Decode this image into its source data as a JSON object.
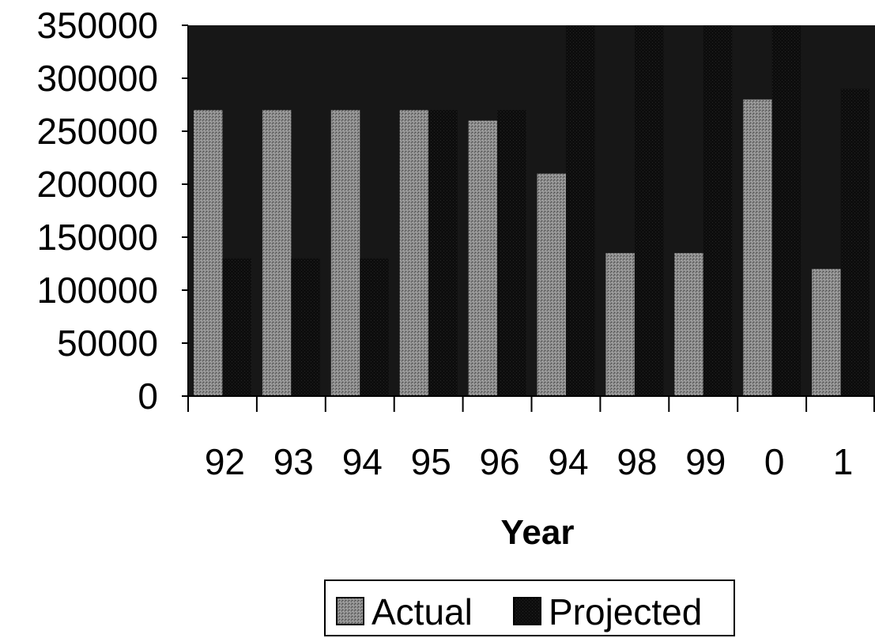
{
  "chart_data": {
    "type": "bar",
    "categories": [
      "92",
      "93",
      "94",
      "95",
      "96",
      "94",
      "98",
      "99",
      "0",
      "1"
    ],
    "series": [
      {
        "name": "Actual",
        "values": [
          270000,
          270000,
          270000,
          270000,
          260000,
          210000,
          135000,
          135000,
          280000,
          120000
        ]
      },
      {
        "name": "Projected",
        "values": [
          130000,
          130000,
          130000,
          270000,
          270000,
          350000,
          350000,
          350000,
          350000,
          290000
        ]
      }
    ],
    "title": "",
    "xlabel": "Year",
    "ylabel": "",
    "ylim": [
      0,
      350000
    ],
    "yticks": [
      "350000",
      "300000",
      "250000",
      "200000",
      "150000",
      "100000",
      "50000",
      "0"
    ],
    "grid": false,
    "legend": "bottom-center",
    "colors": {
      "Actual": "#8c8c8c",
      "Projected": "#0d0d0d",
      "plot_background": "#171717"
    }
  }
}
